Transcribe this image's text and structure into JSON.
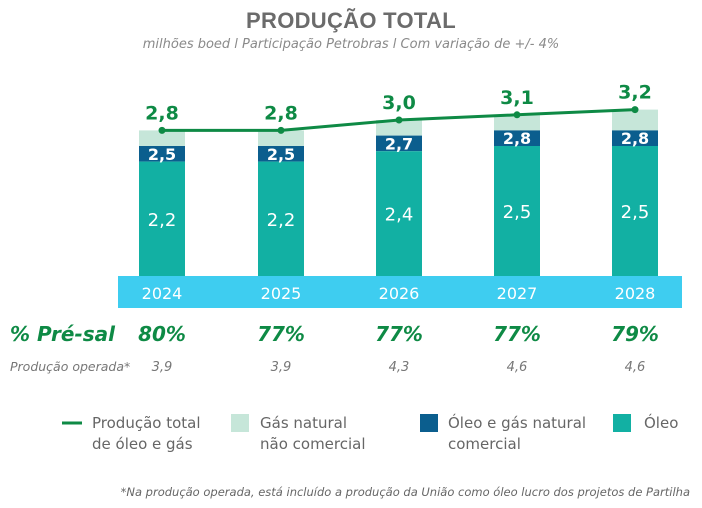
{
  "title": "PRODUÇÃO TOTAL",
  "subtitle": "milhões boed l Participação Petrobras l Com variação de +/- 4%",
  "colors": {
    "oleo": "#12b0a3",
    "oleo_gas_comercial": "#0b5e8e",
    "gas_nao_comercial": "#c6e6d9",
    "linha_total": "#0e8a45",
    "faixa_anos": "#3ecdf0",
    "pre_sal_verde": "#0e8a45"
  },
  "chart_data": {
    "type": "bar",
    "categories": [
      "2024",
      "2025",
      "2026",
      "2027",
      "2028"
    ],
    "series": [
      {
        "name": "Óleo",
        "values": [
          2.2,
          2.2,
          2.4,
          2.5,
          2.5
        ]
      },
      {
        "name": "Óleo e gás natural comercial",
        "values": [
          2.5,
          2.5,
          2.7,
          2.8,
          2.8
        ]
      },
      {
        "name": "Gás natural não comercial",
        "values": [
          2.8,
          2.8,
          3.0,
          3.1,
          3.2
        ]
      },
      {
        "name": "Produção total de óleo e gás",
        "values": [
          2.8,
          2.8,
          3.0,
          3.1,
          3.2
        ]
      }
    ],
    "labels": {
      "oleo": [
        "2,2",
        "2,2",
        "2,4",
        "2,5",
        "2,5"
      ],
      "oleo_gas_comercial": [
        "2,5",
        "2,5",
        "2,7",
        "2,8",
        "2,8"
      ],
      "total": [
        "2,8",
        "2,8",
        "3,0",
        "3,1",
        "3,2"
      ]
    },
    "pre_sal": {
      "label": "% Pré-sal",
      "values": [
        "80%",
        "77%",
        "77%",
        "77%",
        "79%"
      ]
    },
    "producao_operada": {
      "label": "Produção operada*",
      "values": [
        "3,9",
        "3,9",
        "4,3",
        "4,6",
        "4,6"
      ]
    }
  },
  "legend": [
    {
      "key": "linha",
      "text": "Produção total de óleo e gás",
      "lines": [
        "Produção total",
        "de óleo e gás"
      ]
    },
    {
      "key": "gas",
      "text": "Gás natural não comercial",
      "lines": [
        "Gás natural",
        "não comercial"
      ]
    },
    {
      "key": "comercial",
      "text": "Óleo e gás natural comercial",
      "lines": [
        "Óleo e gás natural",
        "comercial"
      ]
    },
    {
      "key": "oleo",
      "text": "Óleo",
      "lines": [
        "Óleo"
      ]
    }
  ],
  "footnote": "*Na produção operada, está incluído a produção da União como óleo lucro dos projetos de Partilha"
}
